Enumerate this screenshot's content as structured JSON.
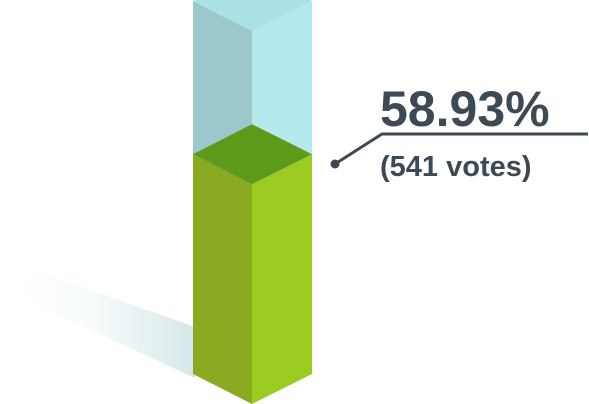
{
  "chart_data": {
    "type": "bar",
    "style": "3d-column",
    "categories": [
      ""
    ],
    "series": [
      {
        "values": [
          58.93
        ]
      }
    ],
    "ylim": [
      0,
      100
    ],
    "annotations": {
      "percent_label": "58.93%",
      "votes_label": "(541 votes)",
      "votes": 541
    },
    "colors": {
      "fill_front": "#8aaa22",
      "fill_side": "#9ccc22",
      "fill_top": "#5e9a1a",
      "empty_front": "#9dc8cb",
      "empty_side": "#b3e8ec",
      "empty_top": "#a9e1e6",
      "callout": "#3d4a55"
    },
    "grid": false,
    "legend": "none"
  }
}
